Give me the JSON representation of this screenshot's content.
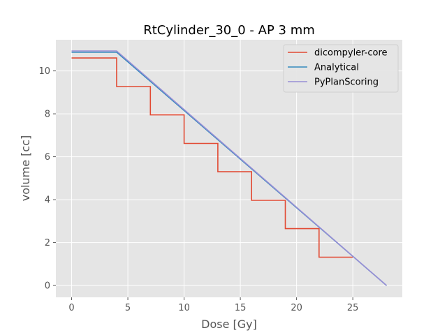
{
  "chart_data": {
    "type": "line",
    "title": "RtCylinder_30_0 - AP 3 mm",
    "xlabel": "Dose [Gy]",
    "ylabel": "volume [cc]",
    "xlim": [
      -1.4,
      29.4
    ],
    "ylim": [
      -0.55,
      11.45
    ],
    "xticks": [
      0,
      5,
      10,
      15,
      20,
      25
    ],
    "yticks": [
      0,
      2,
      4,
      6,
      8,
      10
    ],
    "grid": true,
    "legend_position": "top-right",
    "series": [
      {
        "name": "dicompyler-core",
        "color": "#E24A33",
        "x": [
          0,
          4,
          4,
          7,
          7,
          10,
          10,
          13,
          13,
          16,
          16,
          19,
          19,
          22,
          22,
          25
        ],
        "y": [
          10.6,
          10.6,
          9.27,
          9.27,
          7.95,
          7.95,
          6.62,
          6.62,
          5.3,
          5.3,
          3.97,
          3.97,
          2.65,
          2.65,
          1.32,
          1.32
        ]
      },
      {
        "name": "Analytical",
        "color": "#348ABD",
        "x": [
          0,
          4,
          28
        ],
        "y": [
          10.87,
          10.87,
          0
        ]
      },
      {
        "name": "PyPlanScoring",
        "color": "#988ED5",
        "x": [
          0,
          4,
          28
        ],
        "y": [
          10.93,
          10.93,
          0
        ]
      }
    ]
  }
}
